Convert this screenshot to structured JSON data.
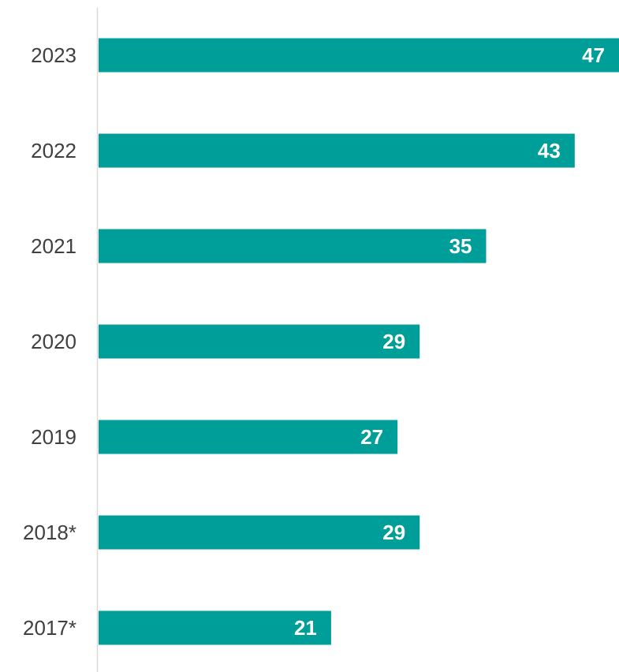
{
  "chart_data": {
    "type": "bar",
    "orientation": "horizontal",
    "categories": [
      "2023",
      "2022",
      "2021",
      "2020",
      "2019",
      "2018*",
      "2017*"
    ],
    "values": [
      47,
      43,
      35,
      29,
      27,
      29,
      21
    ],
    "data_labels": [
      "47",
      "43",
      "35",
      "29",
      "27",
      "29",
      "21"
    ],
    "title": "",
    "xlabel": "",
    "ylabel": "",
    "xlim": [
      0,
      47
    ],
    "grid": false,
    "legend": "none",
    "colors": {
      "bar": "#009e99",
      "value_label": "#ffffff",
      "category_label": "#404040",
      "axis": "#d9d9d9"
    }
  }
}
